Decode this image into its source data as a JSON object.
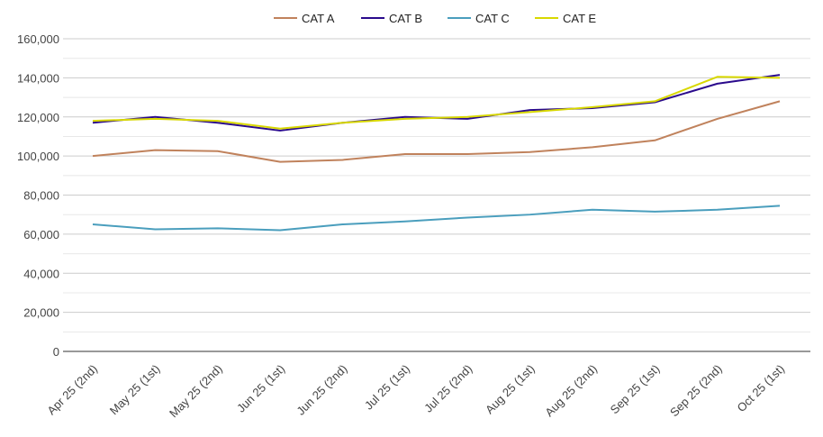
{
  "chart_data": {
    "type": "line",
    "title": "",
    "xlabel": "",
    "ylabel": "",
    "ylim": [
      0,
      160000
    ],
    "yticks": [
      0,
      20000,
      40000,
      60000,
      80000,
      100000,
      120000,
      140000,
      160000
    ],
    "ytick_labels": [
      "0",
      "20,000",
      "40,000",
      "60,000",
      "80,000",
      "100,000",
      "120,000",
      "140,000",
      "160,000"
    ],
    "grid": true,
    "legend_position": "top",
    "categories": [
      "Apr 25 (2nd)",
      "May 25 (1st)",
      "May 25 (2nd)",
      "Jun 25 (1st)",
      "Jun 25 (2nd)",
      "Jul 25 (1st)",
      "Jul 25 (2nd)",
      "Aug 25 (1st)",
      "Aug 25 (2nd)",
      "Sep 25 (1st)",
      "Sep 25 (2nd)",
      "Oct 25 (1st)"
    ],
    "series": [
      {
        "name": "CAT A",
        "color": "#c0825c",
        "values": [
          100000,
          103000,
          102500,
          97000,
          98000,
          101000,
          101000,
          102000,
          104500,
          108000,
          119000,
          128000
        ]
      },
      {
        "name": "CAT B",
        "color": "#2a0a8c",
        "values": [
          117000,
          120000,
          117000,
          113000,
          117000,
          120000,
          119000,
          123500,
          124500,
          127500,
          137000,
          141500
        ]
      },
      {
        "name": "CAT C",
        "color": "#4a9ebd",
        "values": [
          65000,
          62500,
          63000,
          62000,
          65000,
          66500,
          68500,
          70000,
          72500,
          71500,
          72500,
          74500
        ]
      },
      {
        "name": "CAT E",
        "color": "#d8d800",
        "values": [
          118000,
          119000,
          118000,
          114000,
          117000,
          119000,
          120000,
          122500,
          125000,
          128000,
          140500,
          140000
        ]
      }
    ]
  }
}
